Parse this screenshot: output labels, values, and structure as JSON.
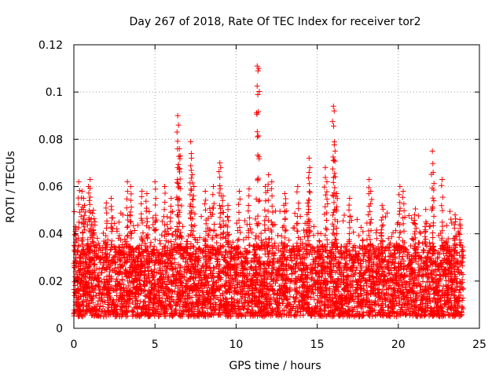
{
  "chart_data": {
    "type": "scatter",
    "title": "Day 267 of 2018, Rate Of TEC Index for receiver tor2",
    "xlabel": "GPS time / hours",
    "ylabel": "ROTI / TECUs",
    "xlim": [
      0,
      24
    ],
    "ylim": [
      0,
      0.12
    ],
    "x_ticks": [
      0,
      5,
      10,
      15,
      20,
      25
    ],
    "x_tick_labels": [
      "0",
      "5",
      "10",
      "15",
      "20",
      "25"
    ],
    "y_ticks": [
      0,
      0.02,
      0.04,
      0.06,
      0.08,
      0.1,
      0.12
    ],
    "y_tick_labels": [
      "0",
      "0.02",
      "0.04",
      "0.06",
      "0.08",
      "0.1",
      "0.12"
    ],
    "grid": true,
    "marker": "+",
    "color": "#ff0000",
    "baseline_band": {
      "description": "dense cloud of observations",
      "min": 0.005,
      "max": 0.035
    },
    "series": [
      {
        "name": "ROTI",
        "points": [
          {
            "x": 0.1,
            "y": 0.043
          },
          {
            "x": 0.3,
            "y": 0.062
          },
          {
            "x": 0.5,
            "y": 0.058
          },
          {
            "x": 0.6,
            "y": 0.055
          },
          {
            "x": 0.9,
            "y": 0.06
          },
          {
            "x": 1.0,
            "y": 0.063
          },
          {
            "x": 1.2,
            "y": 0.05
          },
          {
            "x": 2.0,
            "y": 0.053
          },
          {
            "x": 2.3,
            "y": 0.055
          },
          {
            "x": 3.3,
            "y": 0.062
          },
          {
            "x": 3.5,
            "y": 0.06
          },
          {
            "x": 4.2,
            "y": 0.058
          },
          {
            "x": 4.5,
            "y": 0.057
          },
          {
            "x": 5.0,
            "y": 0.062
          },
          {
            "x": 5.6,
            "y": 0.06
          },
          {
            "x": 6.0,
            "y": 0.055
          },
          {
            "x": 6.4,
            "y": 0.09
          },
          {
            "x": 6.45,
            "y": 0.086
          },
          {
            "x": 6.5,
            "y": 0.076
          },
          {
            "x": 6.55,
            "y": 0.073
          },
          {
            "x": 6.4,
            "y": 0.068
          },
          {
            "x": 7.2,
            "y": 0.079
          },
          {
            "x": 7.25,
            "y": 0.072
          },
          {
            "x": 7.3,
            "y": 0.065
          },
          {
            "x": 7.4,
            "y": 0.06
          },
          {
            "x": 8.1,
            "y": 0.058
          },
          {
            "x": 8.6,
            "y": 0.06
          },
          {
            "x": 9.0,
            "y": 0.07
          },
          {
            "x": 9.05,
            "y": 0.068
          },
          {
            "x": 9.2,
            "y": 0.056
          },
          {
            "x": 9.5,
            "y": 0.052
          },
          {
            "x": 10.2,
            "y": 0.058
          },
          {
            "x": 10.8,
            "y": 0.059
          },
          {
            "x": 11.3,
            "y": 0.111
          },
          {
            "x": 11.35,
            "y": 0.109
          },
          {
            "x": 11.4,
            "y": 0.11
          },
          {
            "x": 11.8,
            "y": 0.06
          },
          {
            "x": 12.0,
            "y": 0.065
          },
          {
            "x": 12.2,
            "y": 0.062
          },
          {
            "x": 13.0,
            "y": 0.057
          },
          {
            "x": 13.8,
            "y": 0.06
          },
          {
            "x": 14.5,
            "y": 0.072
          },
          {
            "x": 14.5,
            "y": 0.066
          },
          {
            "x": 14.4,
            "y": 0.053
          },
          {
            "x": 15.5,
            "y": 0.068
          },
          {
            "x": 15.6,
            "y": 0.062
          },
          {
            "x": 16.0,
            "y": 0.094
          },
          {
            "x": 16.05,
            "y": 0.092
          },
          {
            "x": 16.1,
            "y": 0.075
          },
          {
            "x": 16.0,
            "y": 0.071
          },
          {
            "x": 16.2,
            "y": 0.057
          },
          {
            "x": 17.0,
            "y": 0.055
          },
          {
            "x": 18.2,
            "y": 0.063
          },
          {
            "x": 18.3,
            "y": 0.058
          },
          {
            "x": 19.0,
            "y": 0.052
          },
          {
            "x": 20.1,
            "y": 0.06
          },
          {
            "x": 20.3,
            "y": 0.058
          },
          {
            "x": 21.0,
            "y": 0.048
          },
          {
            "x": 21.7,
            "y": 0.045
          },
          {
            "x": 22.1,
            "y": 0.075
          },
          {
            "x": 22.15,
            "y": 0.066
          },
          {
            "x": 22.7,
            "y": 0.063
          },
          {
            "x": 23.5,
            "y": 0.048
          },
          {
            "x": 23.8,
            "y": 0.046
          }
        ]
      }
    ]
  }
}
